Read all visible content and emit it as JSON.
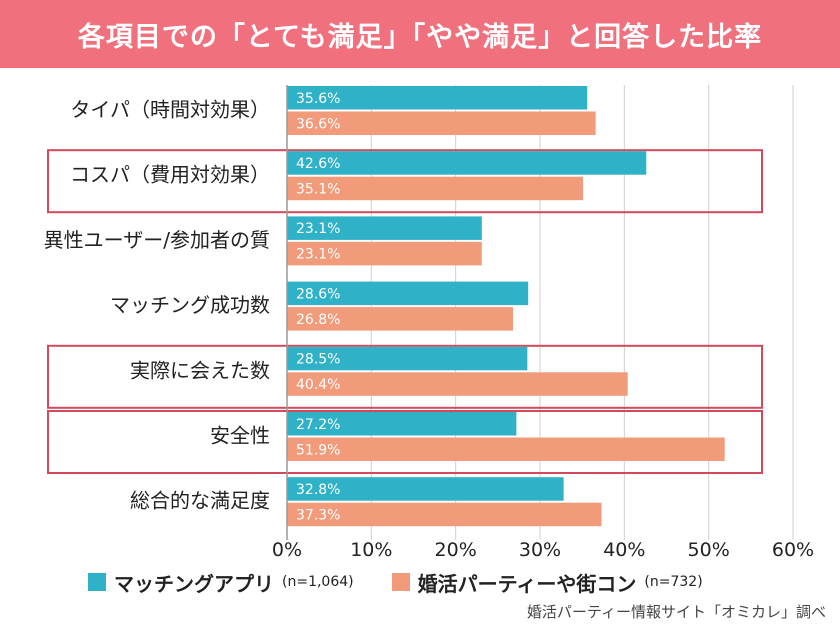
{
  "title": "各項目での「とても満足」「やや満足」と回答した比率",
  "chart_data": {
    "type": "bar",
    "orientation": "horizontal",
    "categories": [
      "タイパ（時間対効果）",
      "コスパ（費用対効果）",
      "異性ユーザー/参加者の質",
      "マッチング成功数",
      "実際に会えた数",
      "安全性",
      "総合的な満足度"
    ],
    "series": [
      {
        "name": "マッチングアプリ",
        "n_label": "(n=1,064)",
        "color": "#2fb1c8",
        "values": [
          35.6,
          42.6,
          23.1,
          28.6,
          28.5,
          27.2,
          32.8
        ],
        "labels": [
          "35.6%",
          "42.6%",
          "23.1%",
          "28.6%",
          "28.5%",
          "27.2%",
          "32.8%"
        ]
      },
      {
        "name": "婚活パーティーや街コン",
        "n_label": "(n=732)",
        "color": "#f29b7b",
        "values": [
          36.6,
          35.1,
          23.1,
          26.8,
          40.4,
          51.9,
          37.3
        ],
        "labels": [
          "36.6%",
          "35.1%",
          "23.1%",
          "26.8%",
          "40.4%",
          "51.9%",
          "37.3%"
        ]
      }
    ],
    "xlim": [
      0,
      60
    ],
    "ticks": [
      0,
      10,
      20,
      30,
      40,
      50,
      60
    ],
    "tick_labels": [
      "0%",
      "10%",
      "20%",
      "30%",
      "40%",
      "50%",
      "60%"
    ],
    "grid": true,
    "highlighted_categories": [
      "コスパ（費用対効果）",
      "実際に会えた数",
      "安全性"
    ],
    "highlight_color": "#d1495b"
  },
  "source": "婚活パーティー情報サイト「オミカレ」調べ"
}
